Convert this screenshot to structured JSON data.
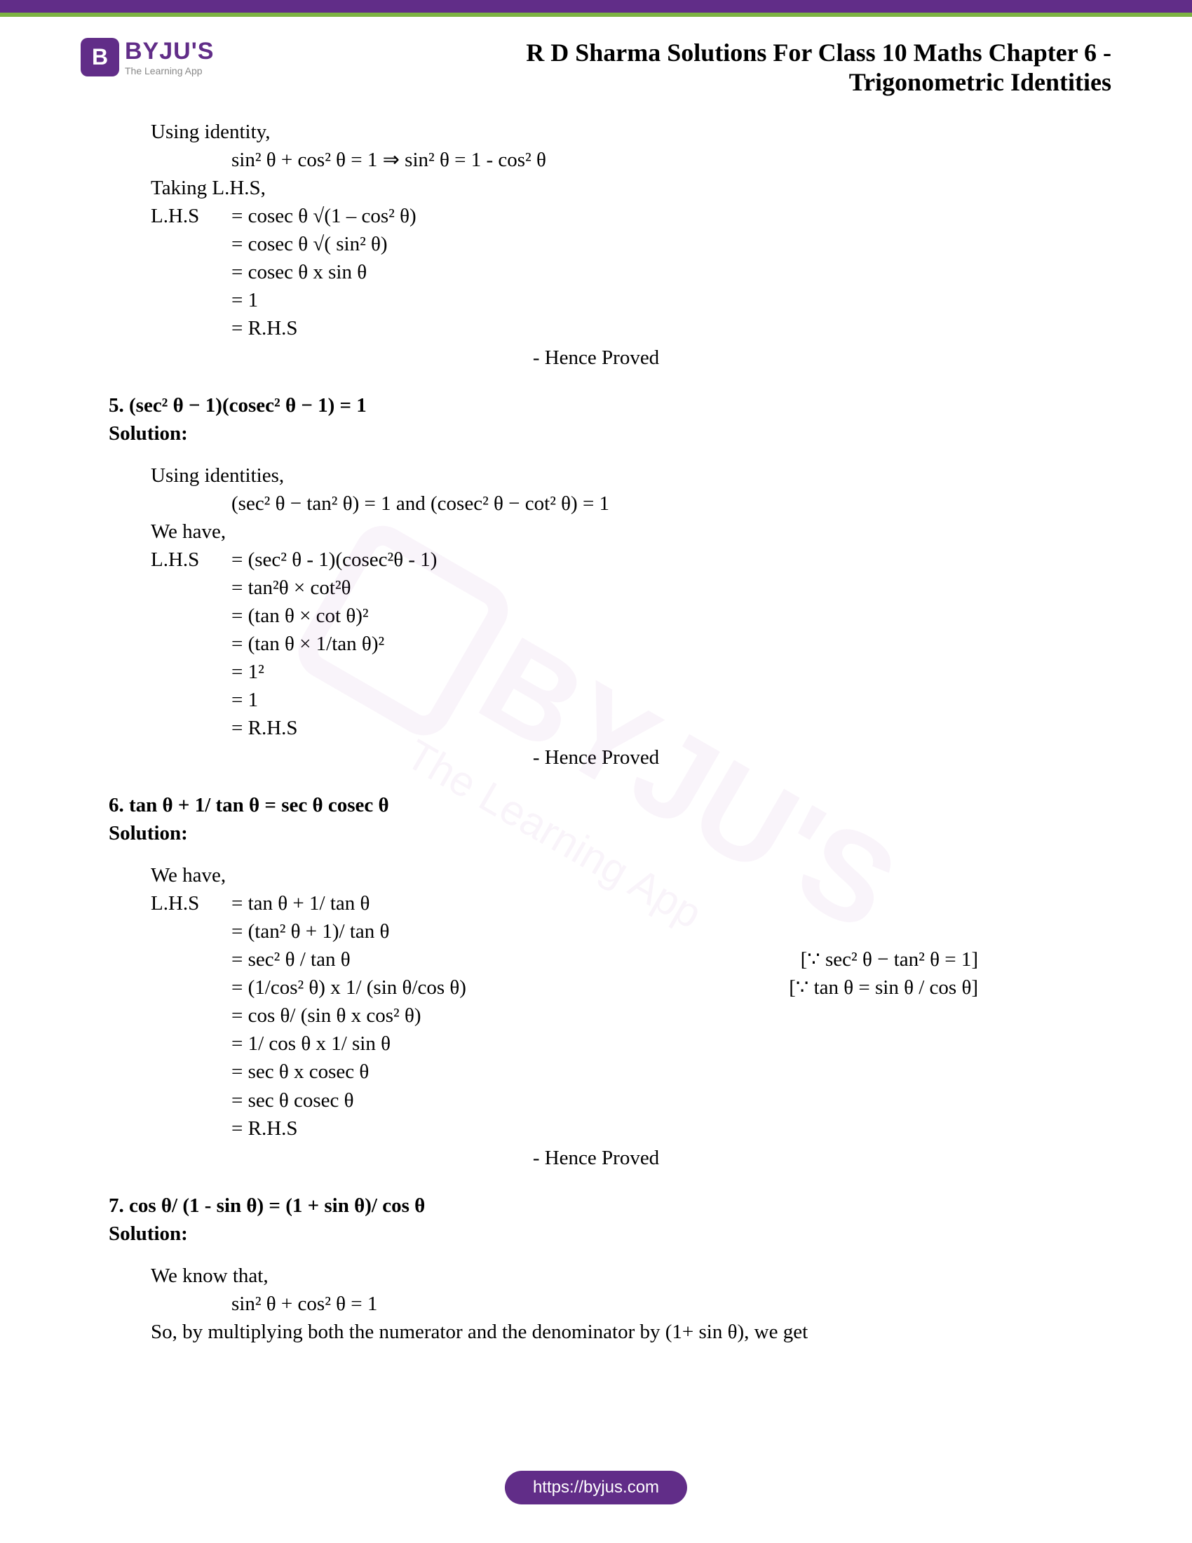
{
  "colors": {
    "brand_purple": "#612d88",
    "accent_green": "#7cb342",
    "text": "#000000",
    "tagline_gray": "#888888",
    "watermark": "rgba(150,70,170,0.06)"
  },
  "typography": {
    "body_font": "Times New Roman",
    "body_size_pt": 22,
    "title_size_pt": 27,
    "logo_font": "Arial"
  },
  "header": {
    "logo_letter": "B",
    "logo_name": "BYJU'S",
    "logo_tagline": "The Learning App",
    "title_line": "R D Sharma Solutions For Class 10 Maths Chapter 6 - Trigonometric Identities"
  },
  "body": {
    "sec4": {
      "l1": "Using identity,",
      "l2": "sin² θ + cos² θ = 1        ⇒ sin² θ = 1 - cos² θ",
      "l3": "Taking L.H.S,",
      "lhs_label": "L.H.S",
      "s1": "= cosec θ √(1 – cos² θ)",
      "s2": "= cosec θ √( sin² θ)",
      "s3": "= cosec θ x sin θ",
      "s4": "= 1",
      "s5": "= R.H.S",
      "proved": "- Hence Proved"
    },
    "q5": {
      "title": "5. (sec² θ − 1)(cosec² θ − 1) = 1",
      "solution": "Solution:",
      "l1": "Using identities,",
      "l2": "(sec² θ − tan² θ) = 1 and (cosec² θ − cot² θ) = 1",
      "l3": "We have,",
      "lhs_label": "L.H.S",
      "s1": "= (sec² θ - 1)(cosec²θ - 1)",
      "s2": "= tan²θ × cot²θ",
      "s3": "= (tan θ × cot θ)²",
      "s4": "= (tan θ × 1/tan θ)²",
      "s5": "= 1²",
      "s6": "= 1",
      "s7": "= R.H.S",
      "proved": "- Hence Proved"
    },
    "q6": {
      "title": "6. tan θ + 1/ tan θ = sec θ cosec θ",
      "solution": "Solution:",
      "l1": "We have,",
      "lhs_label": "L.H.S",
      "s1": "= tan θ + 1/ tan θ",
      "s2": "= (tan² θ + 1)/ tan θ",
      "s3": "= sec² θ / tan θ",
      "n3": "[∵ sec² θ − tan² θ = 1]",
      "s4": "= (1/cos² θ) x 1/ (sin θ/cos θ)",
      "n4": "[∵ tan θ = sin θ / cos θ]",
      "s5": "= cos θ/ (sin θ x cos² θ)",
      "s6": "= 1/ cos θ x 1/ sin θ",
      "s7": "= sec θ x cosec θ",
      "s8": "= sec θ cosec θ",
      "s9": "= R.H.S",
      "proved": "- Hence Proved"
    },
    "q7": {
      "title": "7. cos θ/ (1 - sin θ) = (1 + sin θ)/ cos θ",
      "solution": "Solution:",
      "l1": "We know that,",
      "l2": "sin² θ + cos² θ = 1",
      "l3": "So, by multiplying both the numerator and the denominator by (1+ sin θ), we get"
    }
  },
  "footer": {
    "url": "https://byjus.com"
  },
  "watermark": {
    "main": "BYJU'S",
    "sub": "The Learning App"
  }
}
